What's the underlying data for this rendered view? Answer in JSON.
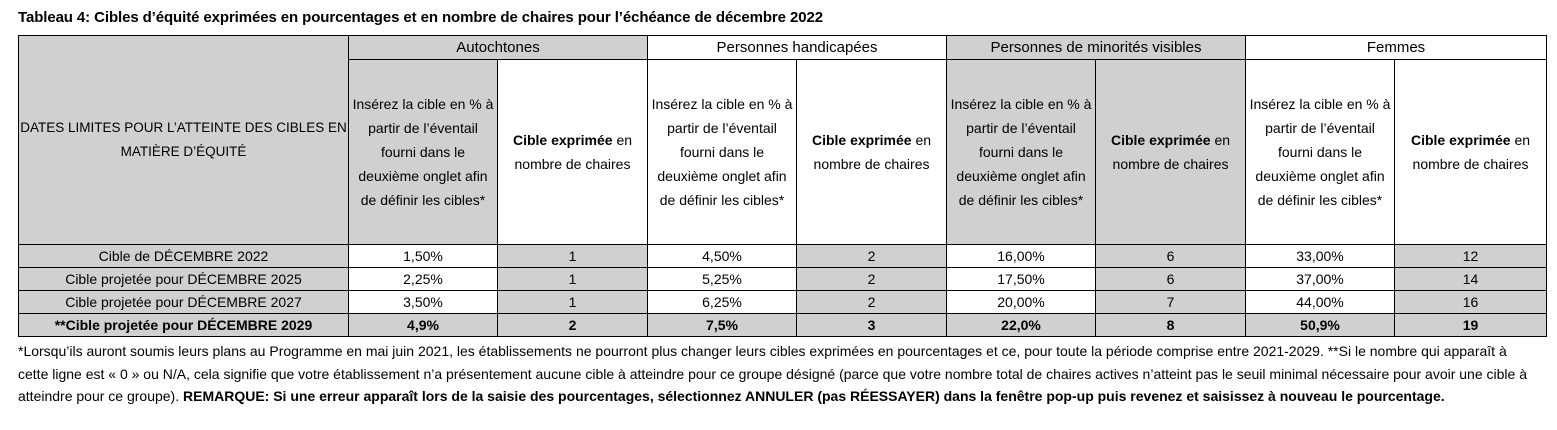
{
  "caption": "Tableau 4: Cibles d’équité exprimées en pourcentages et en nombre de chaires pour l’échéance de décembre 2022",
  "header": {
    "date_column": "DATES LIMITES POUR L’ATTEINTE DES CIBLES EN MATIÈRE D’ÉQUITÉ",
    "groups": [
      "Autochtones",
      "Personnes handicapées",
      "Personnes de minorités visibles",
      "Femmes"
    ],
    "pct_header": "Insérez la cible en % à partir de l’éventail fourni dans le deuxième onglet afin de définir les cibles*",
    "count_header_bold": "Cible exprimée",
    "count_header_rest": " en nombre de chaires"
  },
  "rows": [
    {
      "label": "Cible de DÉCEMBRE 2022",
      "values": [
        "1,50%",
        "1",
        "4,50%",
        "2",
        "16,00%",
        "6",
        "33,00%",
        "12"
      ]
    },
    {
      "label": "Cible projetée pour DÉCEMBRE 2025",
      "values": [
        "2,25%",
        "1",
        "5,25%",
        "2",
        "17,50%",
        "6",
        "37,00%",
        "14"
      ]
    },
    {
      "label": "Cible projetée pour DÉCEMBRE 2027",
      "values": [
        "3,50%",
        "1",
        "6,25%",
        "2",
        "20,00%",
        "7",
        "44,00%",
        "16"
      ]
    },
    {
      "label": "**Cible projetée pour DÉCEMBRE 2029",
      "values": [
        "4,9%",
        "2",
        "7,5%",
        "3",
        "22,0%",
        "8",
        "50,9%",
        "19"
      ]
    }
  ],
  "footnote": {
    "text": "*Lorsqu’ils auront soumis leurs plans au Programme en mai juin 2021, les établissements ne pourront plus changer leurs cibles exprimées en pourcentages et ce, pour toute la période comprise entre 2021-2029. **Si le nombre qui apparaît à cette ligne est « 0 » ou N/A, cela signifie que votre établissement n’a présentement aucune cible à atteindre pour ce groupe désigné (parce que votre nombre total de chaires actives n’atteint pas le seuil minimal nécessaire pour avoir une cible à atteindre pour ce groupe). ",
    "remark": "REMARQUE: Si une erreur apparaît lors de la saisie des pourcentages, sélectionnez ANNULER (pas RÉESSAYER) dans la fenêtre pop-up puis revenez et saisissez à nouveau le pourcentage."
  }
}
